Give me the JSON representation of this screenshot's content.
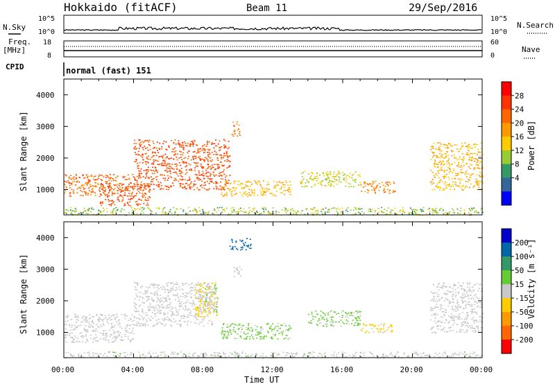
{
  "header": {
    "station": "Hokkaido (fitACF)",
    "beam": "Beam 11",
    "date": "29/Sep/2016"
  },
  "status_panels": {
    "nsky_label": "N.Sky",
    "nsearch_label": "N.Search",
    "noise_ticks_left": [
      "10^5",
      "10^0"
    ],
    "noise_ticks_right": [
      "10^5",
      "10^0"
    ],
    "freq_label": "Freq.",
    "freq_unit": "[MHz]",
    "freq_ticks": [
      "18",
      "8"
    ],
    "nave_label": "Nave",
    "nave_ticks": [
      "60",
      "0"
    ],
    "cpid_label": "CPID",
    "cpid_text": "normal (fast) 151"
  },
  "axes": {
    "xlabel": "Time UT",
    "x_ticks": [
      "00:00",
      "04:00",
      "08:00",
      "12:00",
      "16:00",
      "20:00",
      "00:00"
    ],
    "ylabel": "Slant Range [km]",
    "y_ticks": [
      "1000",
      "2000",
      "3000",
      "4000"
    ]
  },
  "power_colorbar": {
    "label": "Power [dB]",
    "ticks": [
      "28",
      "24",
      "20",
      "16",
      "12",
      "8",
      "4"
    ],
    "colors": [
      "#ff0000",
      "#ff3300",
      "#ff6600",
      "#ff9900",
      "#ffcc00",
      "#99cc33",
      "#339966",
      "#336699",
      "#0000ff"
    ]
  },
  "velocity_colorbar": {
    "label": "Velocity [m s⁻¹]",
    "ticks": [
      "200",
      "100",
      "50",
      "15",
      "-15",
      "-50",
      "-100",
      "-200"
    ],
    "colors": [
      "#0000cc",
      "#0066aa",
      "#339966",
      "#66cc33",
      "#c8c8c8",
      "#ffcc00",
      "#ff9900",
      "#ff6600",
      "#ff0000"
    ]
  },
  "chart_data": [
    {
      "type": "heatmap",
      "title": "Power",
      "xlabel": "Time UT",
      "ylabel": "Slant Range [km]",
      "xlim": [
        0,
        24
      ],
      "ylim": [
        200,
        4500
      ],
      "colorbar_label": "Power [dB]",
      "colorbar_range": [
        0,
        32
      ],
      "regions": [
        {
          "t": [
            0.0,
            4.0
          ],
          "r": [
            800,
            1500
          ],
          "value": 24
        },
        {
          "t": [
            2.0,
            5.0
          ],
          "r": [
            500,
            1200
          ],
          "value": 26
        },
        {
          "t": [
            4.0,
            9.5
          ],
          "r": [
            1000,
            2600
          ],
          "value": 26
        },
        {
          "t": [
            9.6,
            10.1
          ],
          "r": [
            2700,
            3200
          ],
          "value": 22
        },
        {
          "t": [
            9.0,
            13.0
          ],
          "r": [
            800,
            1300
          ],
          "value": 18
        },
        {
          "t": [
            13.5,
            17.0
          ],
          "r": [
            1100,
            1600
          ],
          "value": 14
        },
        {
          "t": [
            17.0,
            19.0
          ],
          "r": [
            900,
            1300
          ],
          "value": 22
        },
        {
          "t": [
            21.0,
            24.0
          ],
          "r": [
            1000,
            2500
          ],
          "value": 18
        },
        {
          "t": [
            0.0,
            24.0
          ],
          "r": [
            200,
            450
          ],
          "value": 12
        }
      ]
    },
    {
      "type": "heatmap",
      "title": "Velocity",
      "xlabel": "Time UT",
      "ylabel": "Slant Range [km]",
      "xlim": [
        0,
        24
      ],
      "ylim": [
        200,
        4500
      ],
      "colorbar_label": "Velocity [m s⁻¹]",
      "colorbar_range": [
        -250,
        250
      ],
      "regions": [
        {
          "t": [
            0.0,
            4.0
          ],
          "r": [
            700,
            1600
          ],
          "value": 0
        },
        {
          "t": [
            4.0,
            8.5
          ],
          "r": [
            1200,
            2600
          ],
          "value": -10
        },
        {
          "t": [
            7.5,
            8.8
          ],
          "r": [
            1500,
            2600
          ],
          "value": -40
        },
        {
          "t": [
            8.0,
            8.8
          ],
          "r": [
            1600,
            2600
          ],
          "value": 30
        },
        {
          "t": [
            9.7,
            10.2
          ],
          "r": [
            2700,
            3100
          ],
          "value": 0
        },
        {
          "t": [
            9.5,
            10.7
          ],
          "r": [
            3600,
            4000
          ],
          "value": 200
        },
        {
          "t": [
            9.0,
            13.0
          ],
          "r": [
            800,
            1300
          ],
          "value": 40
        },
        {
          "t": [
            14.0,
            17.0
          ],
          "r": [
            1200,
            1700
          ],
          "value": 40
        },
        {
          "t": [
            17.0,
            19.0
          ],
          "r": [
            1000,
            1300
          ],
          "value": -40
        },
        {
          "t": [
            21.0,
            24.0
          ],
          "r": [
            1000,
            2600
          ],
          "value": 0
        },
        {
          "t": [
            0.0,
            24.0
          ],
          "r": [
            200,
            400
          ],
          "value": 20
        }
      ]
    }
  ]
}
